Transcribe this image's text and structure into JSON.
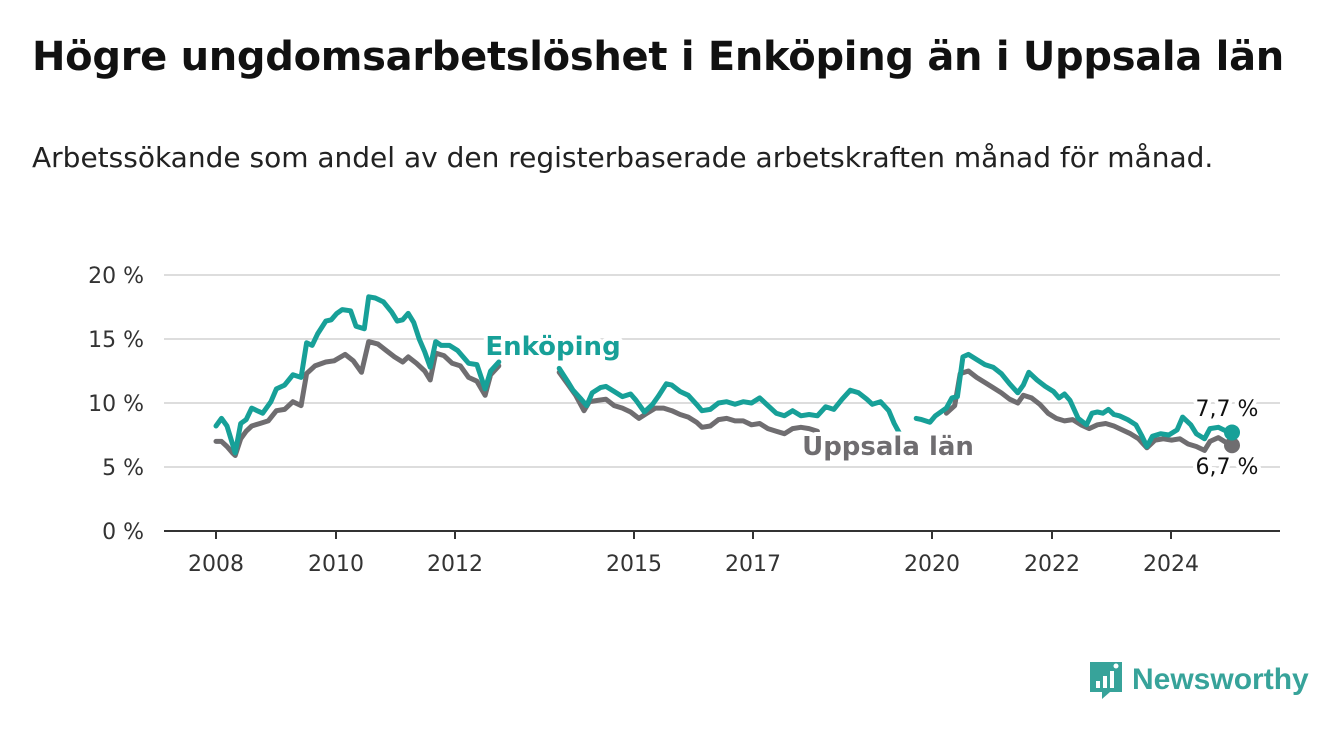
{
  "header": {
    "title": "Högre ungdomsarbetslöshet i Enköping än i Uppsala län",
    "subtitle": "Arbetssökande som andel av den registerbaserade arbetskraften månad för månad."
  },
  "brand": {
    "name": "Newsworthy",
    "icon": "newsworthy-logo-icon",
    "color": "#37a39a"
  },
  "chart_data": {
    "type": "line",
    "title": "Högre ungdomsarbetslöshet i Enköping än i Uppsala län",
    "subtitle": "Arbetssökande som andel av den registerbaserade arbetskraften månad för månad.",
    "ylim": [
      0,
      20
    ],
    "yticks": [
      0,
      5,
      10,
      15,
      20
    ],
    "ytick_labels": [
      "0 %",
      "5 %",
      "10 %",
      "15 %",
      "20 %"
    ],
    "xlim": [
      2007.9,
      2026.3
    ],
    "xticks": [
      2008,
      2010,
      2012,
      2015,
      2017,
      2020,
      2022,
      2024
    ],
    "xtick_labels": [
      "2008",
      "2010",
      "2012",
      "2015",
      "2017",
      "2020",
      "2022",
      "2024"
    ],
    "grid": true,
    "series": [
      {
        "name": "Enköping",
        "color": "#17a098",
        "end_label": "7,7 %",
        "points": [
          [
            2008.0,
            8.2
          ],
          [
            2008.1,
            8.8
          ],
          [
            2008.2,
            8.2
          ],
          [
            2008.3,
            6.8
          ],
          [
            2008.35,
            6.1
          ],
          [
            2008.45,
            8.4
          ],
          [
            2008.55,
            8.7
          ],
          [
            2008.65,
            9.6
          ],
          [
            2008.75,
            9.4
          ],
          [
            2008.85,
            9.2
          ],
          [
            2009.0,
            10.1
          ],
          [
            2009.1,
            11.1
          ],
          [
            2009.25,
            11.4
          ],
          [
            2009.4,
            12.2
          ],
          [
            2009.55,
            12.0
          ],
          [
            2009.65,
            14.7
          ],
          [
            2009.75,
            14.5
          ],
          [
            2009.85,
            15.4
          ],
          [
            2010.0,
            16.4
          ],
          [
            2010.1,
            16.5
          ],
          [
            2010.2,
            17.0
          ],
          [
            2010.3,
            17.3
          ],
          [
            2010.45,
            17.2
          ],
          [
            2010.55,
            16.0
          ],
          [
            2010.7,
            15.8
          ],
          [
            2010.78,
            18.3
          ],
          [
            2010.9,
            18.2
          ],
          [
            2011.05,
            17.9
          ],
          [
            2011.2,
            17.1
          ],
          [
            2011.3,
            16.4
          ],
          [
            2011.4,
            16.5
          ],
          [
            2011.5,
            17.0
          ],
          [
            2011.6,
            16.3
          ],
          [
            2011.7,
            15.0
          ],
          [
            2011.8,
            14.0
          ],
          [
            2011.9,
            12.8
          ],
          [
            2012.0,
            14.8
          ],
          [
            2012.1,
            14.5
          ],
          [
            2012.25,
            14.5
          ],
          [
            2012.4,
            14.1
          ],
          [
            2012.5,
            13.6
          ],
          [
            2012.6,
            13.1
          ],
          [
            2012.75,
            13.0
          ],
          [
            2012.9,
            11.1
          ],
          [
            2013.0,
            12.5
          ],
          [
            2013.15,
            13.2
          ]
        ],
        "points_b": [
          [
            2014.25,
            12.7
          ],
          [
            2014.4,
            11.7
          ],
          [
            2014.5,
            11.0
          ],
          [
            2014.65,
            10.3
          ],
          [
            2014.75,
            9.8
          ],
          [
            2014.85,
            10.8
          ],
          [
            2015.0,
            11.2
          ],
          [
            2015.1,
            11.3
          ],
          [
            2015.25,
            10.9
          ],
          [
            2015.4,
            10.5
          ],
          [
            2015.55,
            10.7
          ],
          [
            2015.65,
            10.2
          ],
          [
            2015.8,
            9.3
          ],
          [
            2015.95,
            9.9
          ],
          [
            2016.05,
            10.5
          ],
          [
            2016.2,
            11.5
          ],
          [
            2016.3,
            11.4
          ],
          [
            2016.45,
            10.9
          ],
          [
            2016.6,
            10.6
          ],
          [
            2016.75,
            9.9
          ],
          [
            2016.85,
            9.4
          ],
          [
            2017.0,
            9.5
          ],
          [
            2017.15,
            10.0
          ],
          [
            2017.3,
            10.1
          ],
          [
            2017.45,
            9.9
          ],
          [
            2017.6,
            10.1
          ],
          [
            2017.75,
            10.0
          ],
          [
            2017.9,
            10.4
          ],
          [
            2018.05,
            9.8
          ],
          [
            2018.2,
            9.2
          ],
          [
            2018.35,
            9.0
          ],
          [
            2018.5,
            9.4
          ],
          [
            2018.65,
            9.0
          ],
          [
            2018.8,
            9.1
          ],
          [
            2018.95,
            9.0
          ],
          [
            2019.1,
            9.7
          ],
          [
            2019.25,
            9.5
          ],
          [
            2019.4,
            10.3
          ],
          [
            2019.55,
            11.0
          ],
          [
            2019.7,
            10.8
          ],
          [
            2019.85,
            10.3
          ],
          [
            2019.95,
            9.9
          ],
          [
            2020.1,
            10.1
          ],
          [
            2020.25,
            9.4
          ],
          [
            2020.35,
            8.4
          ],
          [
            2020.45,
            7.6
          ]
        ],
        "points_c": [
          [
            2020.75,
            8.8
          ],
          [
            2020.85,
            8.7
          ],
          [
            2021.0,
            8.5
          ],
          [
            2021.1,
            9.0
          ],
          [
            2021.3,
            9.6
          ],
          [
            2021.4,
            10.4
          ],
          [
            2021.5,
            10.5
          ],
          [
            2021.6,
            13.6
          ],
          [
            2021.7,
            13.8
          ],
          [
            2021.85,
            13.4
          ],
          [
            2022.0,
            13.0
          ],
          [
            2022.15,
            12.8
          ],
          [
            2022.3,
            12.3
          ],
          [
            2022.45,
            11.5
          ],
          [
            2022.6,
            10.8
          ],
          [
            2022.7,
            11.4
          ],
          [
            2022.8,
            12.4
          ],
          [
            2022.95,
            11.8
          ],
          [
            2023.1,
            11.3
          ],
          [
            2023.25,
            10.9
          ],
          [
            2023.35,
            10.4
          ],
          [
            2023.45,
            10.7
          ],
          [
            2023.55,
            10.2
          ],
          [
            2023.7,
            8.8
          ],
          [
            2023.85,
            8.3
          ],
          [
            2023.95,
            9.2
          ],
          [
            2024.05,
            9.3
          ],
          [
            2024.15,
            9.2
          ],
          [
            2024.25,
            9.5
          ],
          [
            2024.35,
            9.1
          ],
          [
            2024.45,
            9.0
          ],
          [
            2024.6,
            8.7
          ],
          [
            2024.75,
            8.3
          ],
          [
            2024.85,
            7.5
          ],
          [
            2024.95,
            6.6
          ],
          [
            2025.05,
            7.4
          ],
          [
            2025.2,
            7.6
          ],
          [
            2025.35,
            7.5
          ],
          [
            2025.5,
            7.9
          ],
          [
            2025.6,
            8.9
          ],
          [
            2025.75,
            8.3
          ],
          [
            2025.85,
            7.6
          ],
          [
            2026.0,
            7.2
          ],
          [
            2026.1,
            8.0
          ],
          [
            2026.25,
            8.1
          ],
          [
            2026.4,
            7.8
          ],
          [
            2026.5,
            7.7
          ]
        ]
      },
      {
        "name": "Uppsala län",
        "color": "#6f6d70",
        "end_label": "6,7 %",
        "points": [
          [
            2008.0,
            7.0
          ],
          [
            2008.1,
            7.0
          ],
          [
            2008.2,
            6.6
          ],
          [
            2008.3,
            6.1
          ],
          [
            2008.35,
            5.9
          ],
          [
            2008.45,
            7.2
          ],
          [
            2008.55,
            7.8
          ],
          [
            2008.65,
            8.2
          ],
          [
            2008.8,
            8.4
          ],
          [
            2008.95,
            8.6
          ],
          [
            2009.1,
            9.4
          ],
          [
            2009.25,
            9.5
          ],
          [
            2009.4,
            10.1
          ],
          [
            2009.55,
            9.8
          ],
          [
            2009.65,
            12.3
          ],
          [
            2009.8,
            12.9
          ],
          [
            2010.0,
            13.2
          ],
          [
            2010.15,
            13.3
          ],
          [
            2010.35,
            13.8
          ],
          [
            2010.5,
            13.3
          ],
          [
            2010.65,
            12.4
          ],
          [
            2010.78,
            14.8
          ],
          [
            2010.95,
            14.6
          ],
          [
            2011.1,
            14.1
          ],
          [
            2011.25,
            13.6
          ],
          [
            2011.4,
            13.2
          ],
          [
            2011.5,
            13.6
          ],
          [
            2011.65,
            13.1
          ],
          [
            2011.8,
            12.5
          ],
          [
            2011.9,
            11.8
          ],
          [
            2012.0,
            13.9
          ],
          [
            2012.15,
            13.7
          ],
          [
            2012.3,
            13.1
          ],
          [
            2012.45,
            12.9
          ],
          [
            2012.6,
            12.0
          ],
          [
            2012.75,
            11.7
          ],
          [
            2012.9,
            10.6
          ],
          [
            2013.0,
            12.2
          ],
          [
            2013.15,
            12.9
          ]
        ],
        "points_b": [
          [
            2014.25,
            12.4
          ],
          [
            2014.4,
            11.5
          ],
          [
            2014.55,
            10.6
          ],
          [
            2014.7,
            9.4
          ],
          [
            2014.8,
            10.1
          ],
          [
            2014.95,
            10.2
          ],
          [
            2015.1,
            10.3
          ],
          [
            2015.25,
            9.8
          ],
          [
            2015.4,
            9.6
          ],
          [
            2015.55,
            9.3
          ],
          [
            2015.7,
            8.8
          ],
          [
            2015.85,
            9.2
          ],
          [
            2016.0,
            9.6
          ],
          [
            2016.15,
            9.6
          ],
          [
            2016.3,
            9.4
          ],
          [
            2016.45,
            9.1
          ],
          [
            2016.6,
            8.9
          ],
          [
            2016.75,
            8.5
          ],
          [
            2016.85,
            8.1
          ],
          [
            2017.0,
            8.2
          ],
          [
            2017.15,
            8.7
          ],
          [
            2017.3,
            8.8
          ],
          [
            2017.45,
            8.6
          ],
          [
            2017.6,
            8.6
          ],
          [
            2017.75,
            8.3
          ],
          [
            2017.9,
            8.4
          ],
          [
            2018.05,
            8.0
          ],
          [
            2018.2,
            7.8
          ],
          [
            2018.35,
            7.6
          ],
          [
            2018.5,
            8.0
          ],
          [
            2018.65,
            8.1
          ],
          [
            2018.8,
            8.0
          ],
          [
            2018.95,
            7.8
          ]
        ],
        "points_c": [
          [
            2021.3,
            9.2
          ],
          [
            2021.45,
            9.8
          ],
          [
            2021.55,
            12.3
          ],
          [
            2021.7,
            12.5
          ],
          [
            2021.85,
            12.0
          ],
          [
            2022.0,
            11.6
          ],
          [
            2022.15,
            11.2
          ],
          [
            2022.3,
            10.8
          ],
          [
            2022.45,
            10.3
          ],
          [
            2022.6,
            10.0
          ],
          [
            2022.7,
            10.6
          ],
          [
            2022.85,
            10.4
          ],
          [
            2023.0,
            9.9
          ],
          [
            2023.15,
            9.2
          ],
          [
            2023.3,
            8.8
          ],
          [
            2023.45,
            8.6
          ],
          [
            2023.6,
            8.7
          ],
          [
            2023.75,
            8.3
          ],
          [
            2023.9,
            8.0
          ],
          [
            2024.05,
            8.3
          ],
          [
            2024.2,
            8.4
          ],
          [
            2024.35,
            8.2
          ],
          [
            2024.5,
            7.9
          ],
          [
            2024.65,
            7.6
          ],
          [
            2024.8,
            7.2
          ],
          [
            2024.95,
            6.5
          ],
          [
            2025.1,
            7.1
          ],
          [
            2025.25,
            7.2
          ],
          [
            2025.4,
            7.1
          ],
          [
            2025.55,
            7.2
          ],
          [
            2025.7,
            6.8
          ],
          [
            2025.85,
            6.6
          ],
          [
            2026.0,
            6.3
          ],
          [
            2026.1,
            7.0
          ],
          [
            2026.25,
            7.3
          ],
          [
            2026.4,
            6.9
          ],
          [
            2026.5,
            6.7
          ]
        ]
      }
    ]
  }
}
